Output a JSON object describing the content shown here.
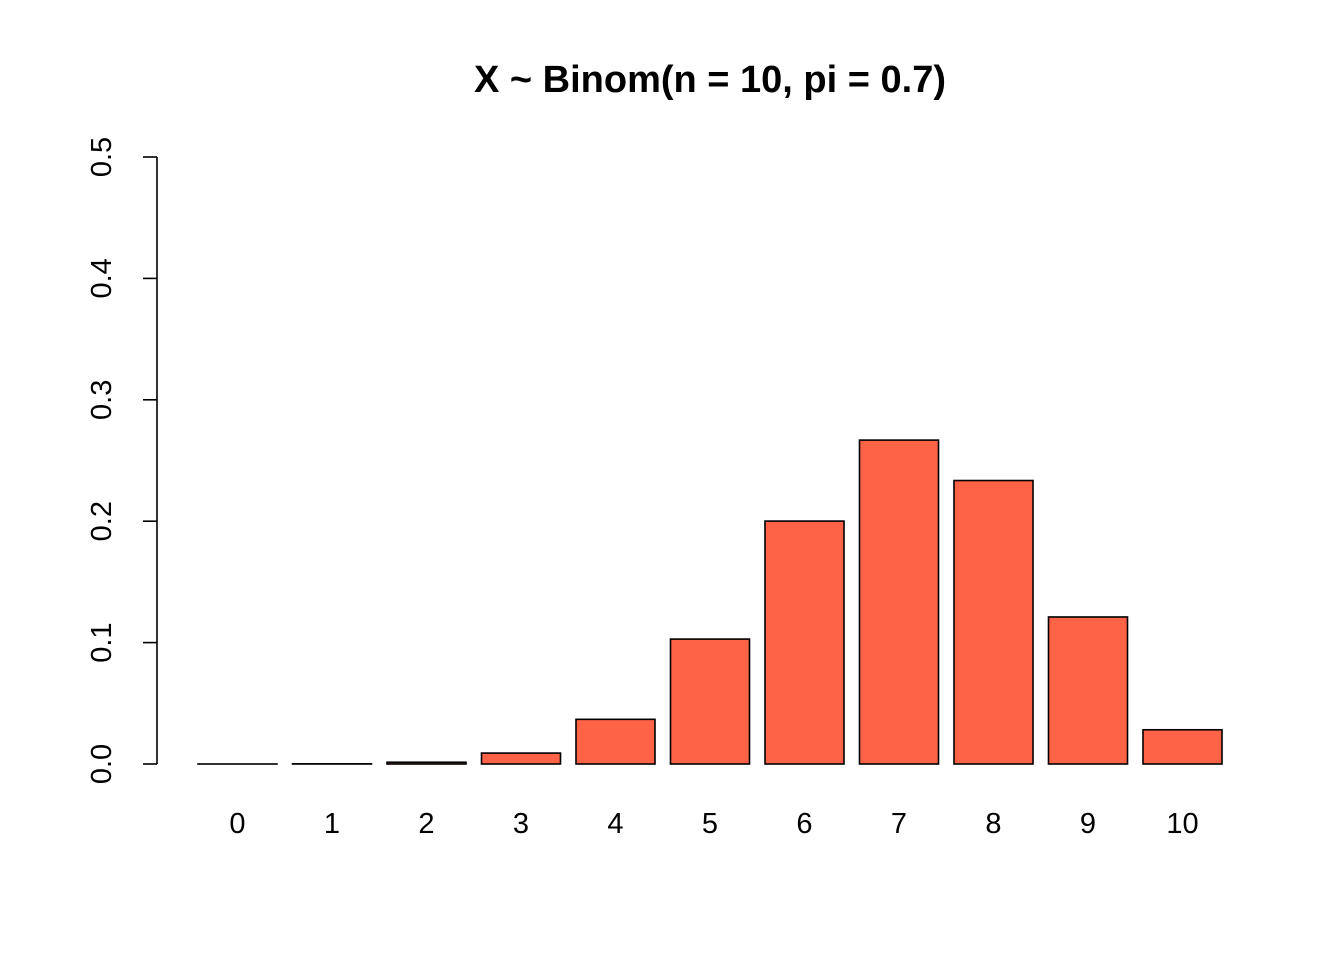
{
  "chart_data": {
    "type": "bar",
    "title": "X ~ Binom(n = 10, pi = 0.7)",
    "xlabel": "",
    "ylabel": "",
    "categories": [
      "0",
      "1",
      "2",
      "3",
      "4",
      "5",
      "6",
      "7",
      "8",
      "9",
      "10"
    ],
    "values": [
      5.9e-06,
      0.000138,
      0.00145,
      0.009,
      0.0368,
      0.1029,
      0.2001,
      0.2668,
      0.2335,
      0.1211,
      0.0282
    ],
    "ylim": [
      0,
      0.5
    ],
    "yticks": [
      "0.0",
      "0.1",
      "0.2",
      "0.3",
      "0.4",
      "0.5"
    ],
    "ytick_values": [
      0,
      0.1,
      0.2,
      0.3,
      0.4,
      0.5
    ],
    "bar_color": "#FF6347",
    "grid": false,
    "legend": "none"
  }
}
